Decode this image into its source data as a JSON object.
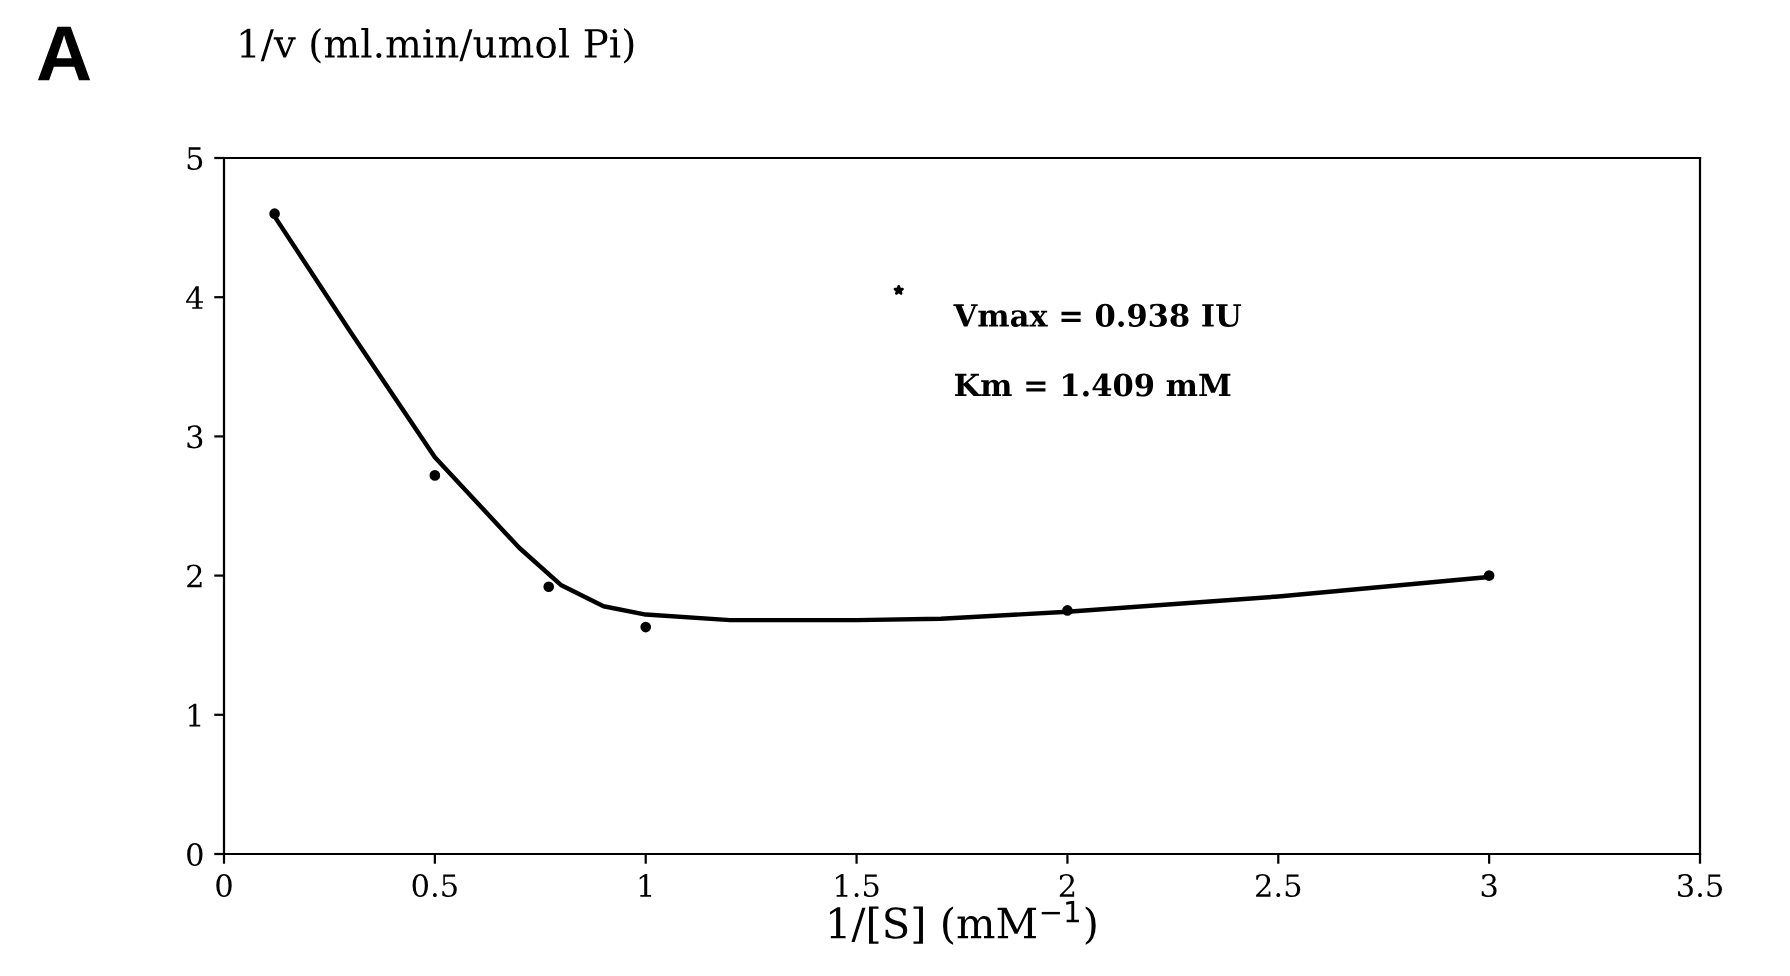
{
  "chart_data": {
    "type": "scatter",
    "xlabel": "1/[S] (mM$^{−1}$)",
    "ylabel": "1/v (ml.min/umol Pi)",
    "annotations": [
      "A",
      "Vmax = 0.938 IU",
      "Km = 1.409 mM"
    ],
    "x": [
      0.12,
      0.5,
      0.77,
      1.0,
      2.0,
      3.0
    ],
    "series": [
      {
        "color": "#000000",
        "values": [
          4.6,
          2.72,
          1.92,
          1.63,
          1.75,
          2.0
        ],
        "marker": "circle"
      },
      {
        "type": "line",
        "color": "#000000",
        "x": [
          0.12,
          0.3,
          0.5,
          0.7,
          0.8,
          0.9,
          1.0,
          1.2,
          1.5,
          1.7,
          2.0,
          2.5,
          3.0
        ],
        "values": [
          4.58,
          3.75,
          2.85,
          2.2,
          1.93,
          1.78,
          1.72,
          1.68,
          1.68,
          1.69,
          1.74,
          1.85,
          1.99
        ],
        "marker": "none"
      },
      {
        "color": "#000000",
        "x": [
          1.6
        ],
        "values": [
          4.05
        ],
        "marker": "star"
      }
    ],
    "xlim": [
      0,
      3.5
    ],
    "xticks": [
      0,
      0.5,
      1,
      1.5,
      2,
      2.5,
      3,
      3.5
    ],
    "ylim": [
      0,
      5
    ],
    "yticks": [
      0,
      1,
      2,
      3,
      4,
      5
    ],
    "grid": false,
    "legend": false,
    "line_style": "solid"
  }
}
